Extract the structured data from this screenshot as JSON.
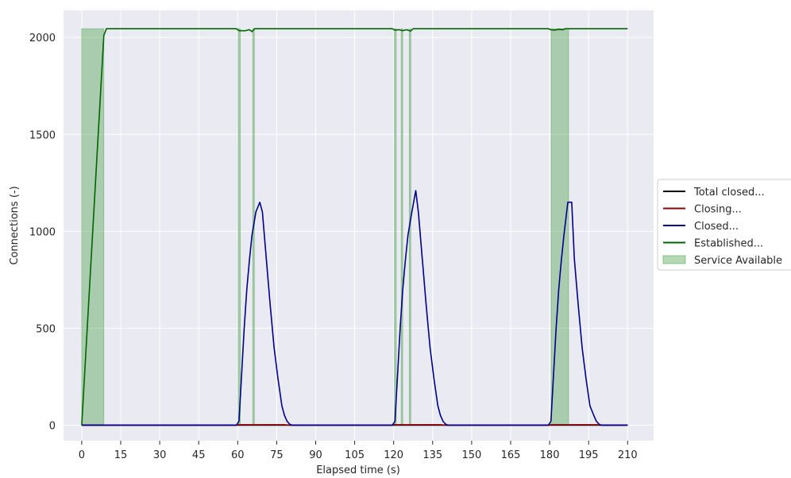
{
  "chart_data": {
    "type": "line",
    "xlabel": "Elapsed time (s)",
    "ylabel": "Connections (-)",
    "xlim": [
      -7,
      220
    ],
    "ylim": [
      -80,
      2140
    ],
    "xticks": [
      0,
      15,
      30,
      45,
      60,
      75,
      90,
      105,
      120,
      135,
      150,
      165,
      180,
      195,
      210
    ],
    "yticks": [
      0,
      500,
      1000,
      1500,
      2000
    ],
    "grid": true,
    "background": "#eaeaf2",
    "legend_placement": "outside-right",
    "series": [
      {
        "name": "Total closed...",
        "color": "#000000",
        "x": [
          0,
          210
        ],
        "y": [
          0,
          0
        ]
      },
      {
        "name": "Closing...",
        "color": "#8b0000",
        "x": [
          0,
          60,
          60,
          78,
          80,
          120,
          120,
          138,
          140,
          180,
          180,
          198,
          200,
          210
        ],
        "y": [
          0,
          0,
          2,
          2,
          0,
          0,
          2,
          2,
          0,
          0,
          2,
          2,
          0,
          0
        ]
      },
      {
        "name": "Closed...",
        "color": "#00008b",
        "x": [
          0,
          59.5,
          60.5,
          61.5,
          62.5,
          63.5,
          64.5,
          65.5,
          67,
          68.5,
          69.5,
          71,
          72.5,
          74,
          75.5,
          77,
          78,
          79,
          80,
          81,
          82,
          119.5,
          120.5,
          121.5,
          122.5,
          123.5,
          124.5,
          125.5,
          127,
          128.5,
          129.5,
          131,
          132.5,
          134,
          135.5,
          137,
          138,
          139,
          140,
          141,
          179.5,
          180.5,
          181.5,
          182.5,
          183.5,
          184.5,
          185.5,
          187,
          188.5,
          189.5,
          191,
          192.5,
          194,
          195.5,
          197,
          198,
          199,
          200,
          201,
          210
        ],
        "y": [
          0,
          0,
          20,
          260,
          500,
          700,
          850,
          980,
          1100,
          1150,
          1100,
          860,
          620,
          400,
          240,
          100,
          50,
          20,
          5,
          0,
          0,
          0,
          20,
          260,
          500,
          700,
          850,
          980,
          1100,
          1210,
          1100,
          860,
          620,
          400,
          240,
          100,
          50,
          20,
          5,
          0,
          0,
          20,
          260,
          500,
          700,
          850,
          980,
          1150,
          1150,
          860,
          620,
          400,
          240,
          100,
          50,
          20,
          5,
          0,
          0,
          0
        ]
      },
      {
        "name": "Established...",
        "color": "#006400",
        "x": [
          0,
          8.5,
          9.5,
          59.5,
          60.5,
          63,
          64.5,
          65.5,
          66.5,
          119.5,
          120.5,
          122,
          123.5,
          125,
          126.5,
          127.5,
          179.5,
          180.5,
          182,
          183.5,
          185,
          186,
          210
        ],
        "y": [
          0,
          2010,
          2045,
          2045,
          2035,
          2035,
          2040,
          2030,
          2045,
          2045,
          2038,
          2040,
          2035,
          2040,
          2033,
          2045,
          2045,
          2040,
          2038,
          2042,
          2040,
          2045,
          2045
        ]
      }
    ],
    "service_available": {
      "name": "Service Available",
      "color": "#5aa85a",
      "intervals": [
        [
          0,
          8.5
        ],
        [
          60.2,
          61
        ],
        [
          65.8,
          66.4
        ],
        [
          120.3,
          121
        ],
        [
          122.9,
          123.5
        ],
        [
          126,
          126.6
        ],
        [
          180.6,
          187.3
        ]
      ],
      "top": 2045
    },
    "legend_entries": [
      "Total closed...",
      "Closing...",
      "Closed...",
      "Established...",
      "Service Available"
    ]
  }
}
